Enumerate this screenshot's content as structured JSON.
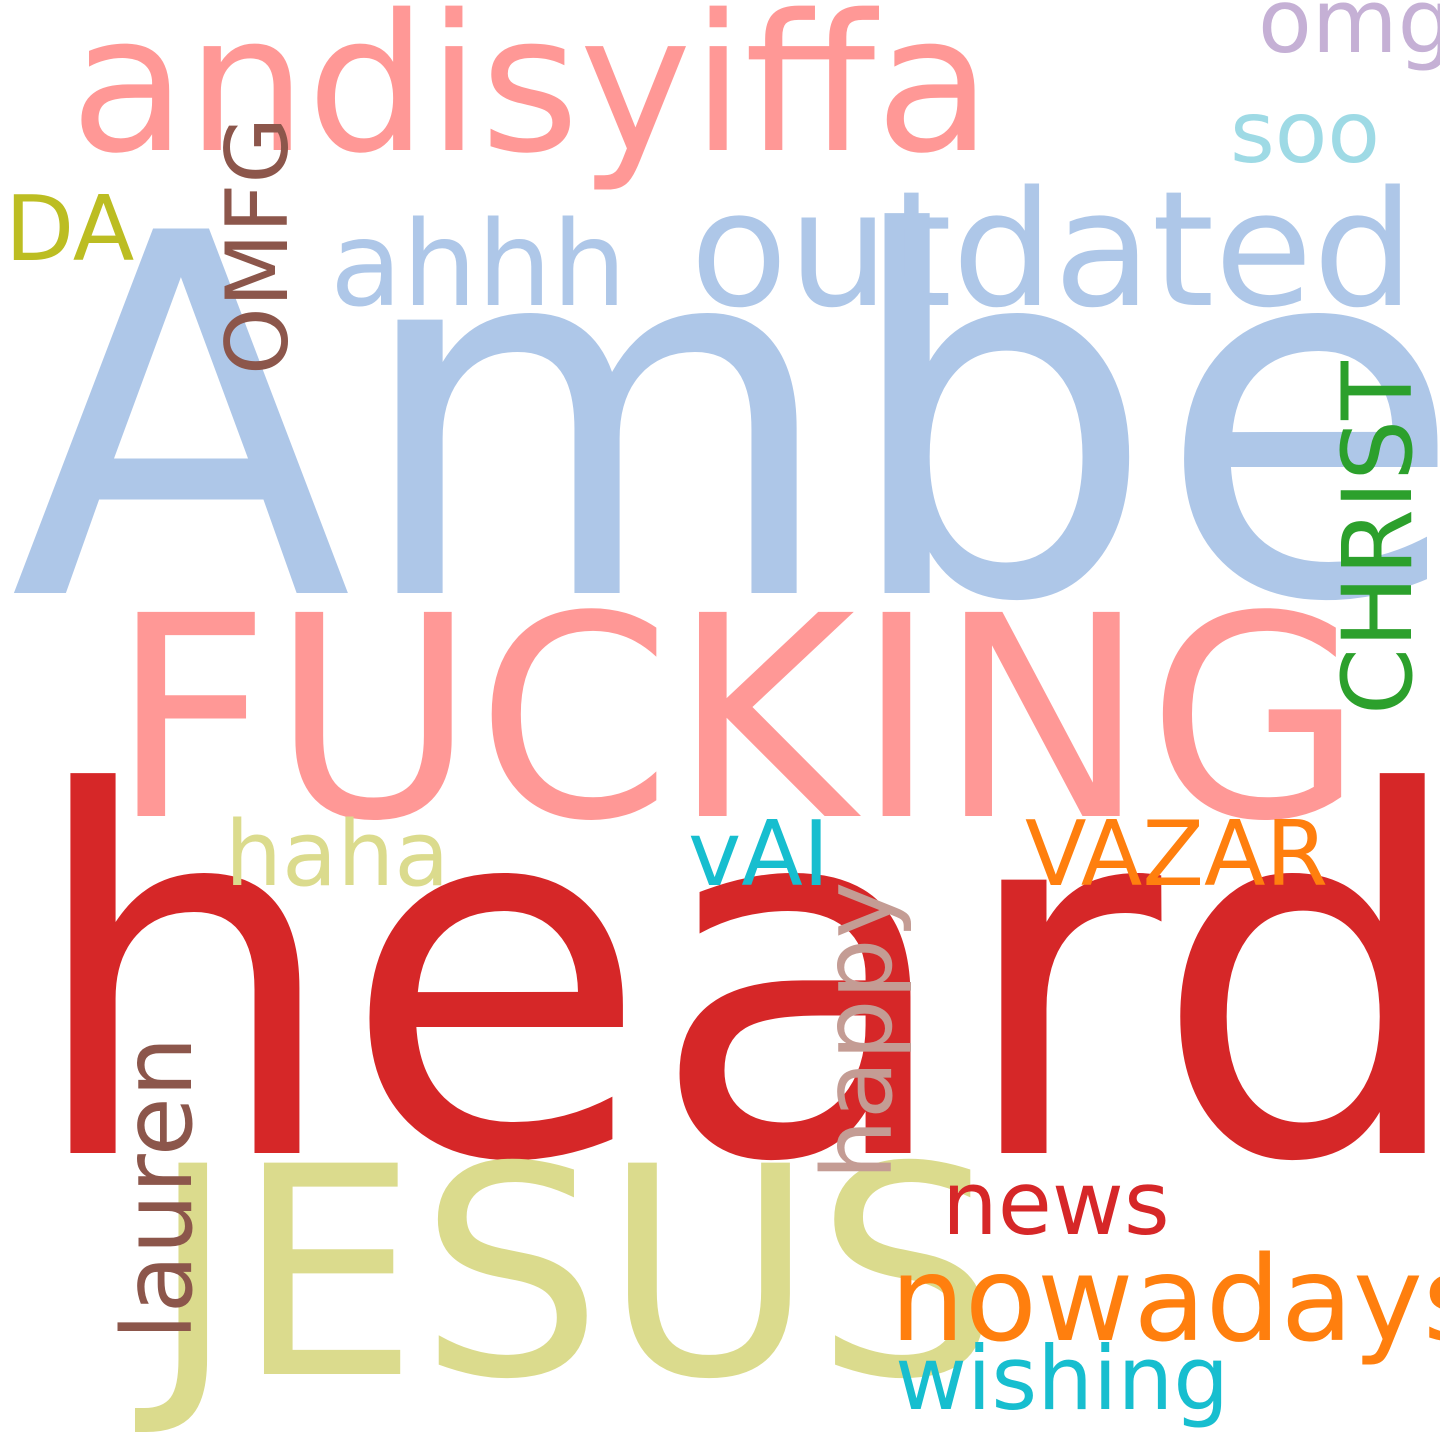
{
  "word_cloud": {
    "words": [
      {
        "id": "amber",
        "text": "Amber",
        "color": "#aec7e8"
      },
      {
        "id": "heard",
        "text": "heard",
        "color": "#d62728"
      },
      {
        "id": "fucking",
        "text": "FUCKING",
        "color": "#ff9896"
      },
      {
        "id": "andisy",
        "text": "andisyiffa",
        "color": "#ff9896"
      },
      {
        "id": "jesus",
        "text": "JESUS",
        "color": "#dbdb8d"
      },
      {
        "id": "outdated",
        "text": "outdated",
        "color": "#aec7e8"
      },
      {
        "id": "nowadays",
        "text": "nowadays",
        "color": "#ff7f0e"
      },
      {
        "id": "ahhh",
        "text": "ahhh",
        "color": "#aec7e8"
      },
      {
        "id": "vazar",
        "text": "VAZAR",
        "color": "#ff7f0e"
      },
      {
        "id": "news",
        "text": "news",
        "color": "#d62728"
      },
      {
        "id": "haha",
        "text": "haha",
        "color": "#dbdb8d"
      },
      {
        "id": "vai",
        "text": "vAI",
        "color": "#17becf"
      },
      {
        "id": "wishing",
        "text": "wishing",
        "color": "#17becf"
      },
      {
        "id": "soo",
        "text": "soo",
        "color": "#9edae5"
      },
      {
        "id": "omg",
        "text": "omg",
        "color": "#c5b0d5"
      },
      {
        "id": "da",
        "text": "DA",
        "color": "#bcbd22"
      },
      {
        "id": "omfg",
        "text": "OMFG",
        "color": "#8c564b",
        "orientation": "vertical"
      },
      {
        "id": "christ",
        "text": "CHRIST",
        "color": "#2ca02c",
        "orientation": "vertical"
      },
      {
        "id": "lauren",
        "text": "lauren",
        "color": "#8c564b",
        "orientation": "vertical"
      },
      {
        "id": "happy",
        "text": "happy",
        "color": "#c49c94",
        "orientation": "vertical"
      }
    ]
  }
}
